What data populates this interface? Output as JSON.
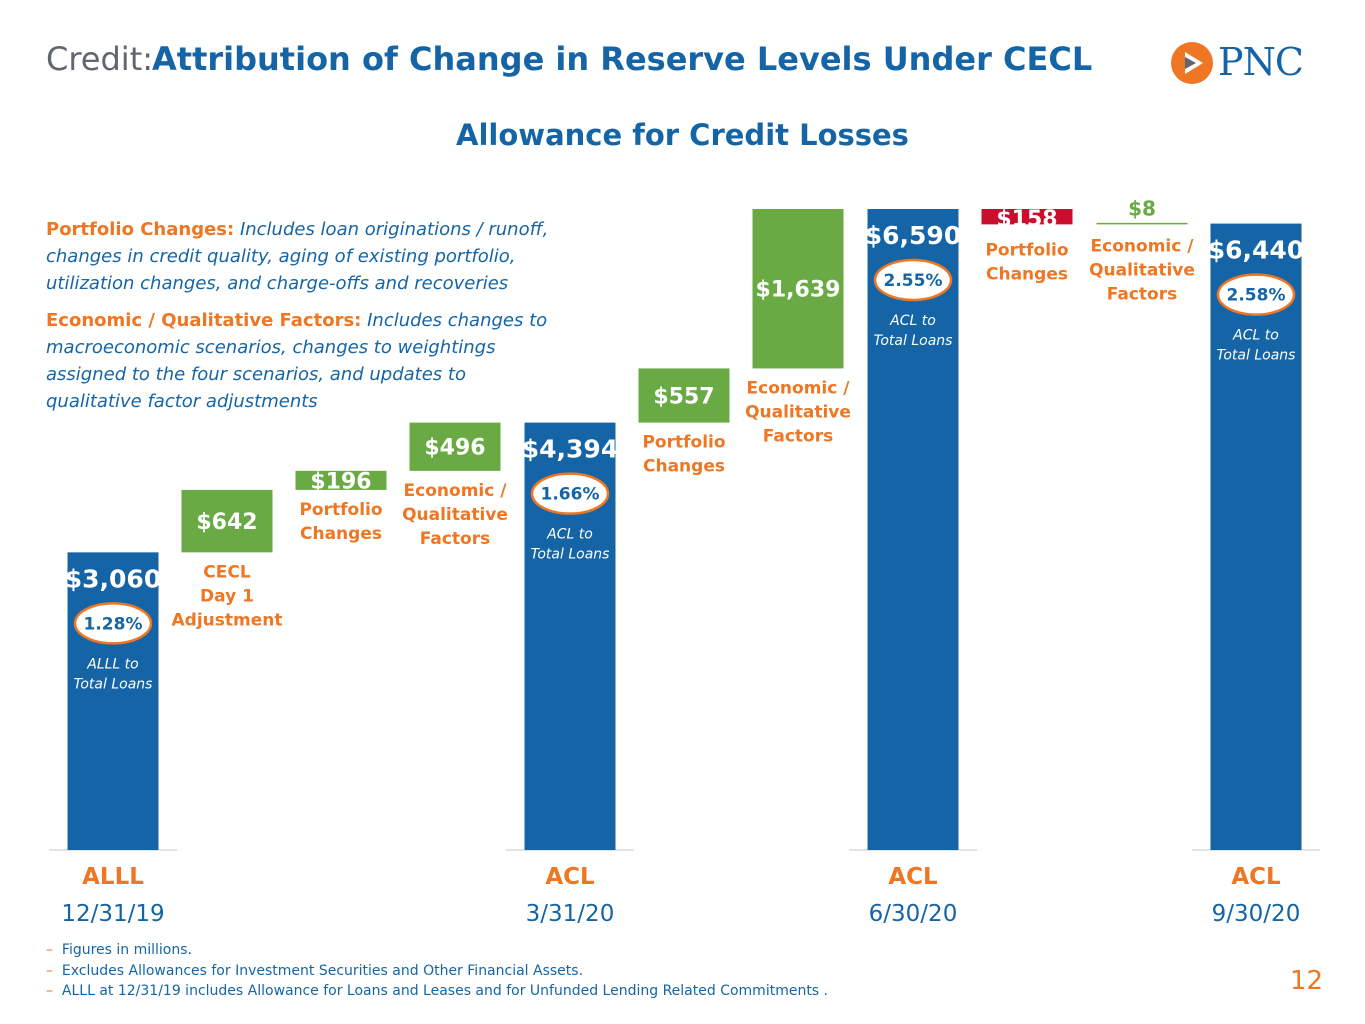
{
  "header": {
    "prefix": "Credit:",
    "title": "Attribution of Change in Reserve Levels Under CECL"
  },
  "logo": {
    "text": "PNC",
    "icon": "pnc-triangle-icon"
  },
  "colors": {
    "blue": "#1565a6",
    "green": "#6aaa45",
    "red": "#c8102e",
    "orange": "#ef7622",
    "gray": "#5f6670"
  },
  "definitions": [
    {
      "term": "Portfolio Changes:",
      "text": "Includes loan originations / runoff, changes in credit quality, aging of existing portfolio, utilization changes, and charge-offs and recoveries"
    },
    {
      "term": "Economic / Qualitative Factors:",
      "text": "Includes changes to macroeconomic scenarios, changes to weightings assigned to the four scenarios, and updates to qualitative factor adjustments"
    }
  ],
  "chart_data": {
    "type": "bar",
    "subtype": "waterfall",
    "title": "Allowance for Credit Losses",
    "unit": "$ millions",
    "steps": [
      {
        "kind": "total",
        "value": 3060,
        "label": "$3,060",
        "ratio": "1.28%",
        "ratio_caption": [
          "ALLL to",
          "Total Loans"
        ],
        "axis_code": "ALLL",
        "axis_date": "12/31/19"
      },
      {
        "kind": "increase",
        "value": 642,
        "label": "$642",
        "caption": [
          "CECL",
          "Day 1",
          "Adjustment"
        ]
      },
      {
        "kind": "increase",
        "value": 196,
        "label": "$196",
        "caption": [
          "Portfolio",
          "Changes"
        ]
      },
      {
        "kind": "increase",
        "value": 496,
        "label": "$496",
        "caption": [
          "Economic /",
          "Qualitative",
          "Factors"
        ]
      },
      {
        "kind": "total",
        "value": 4394,
        "label": "$4,394",
        "ratio": "1.66%",
        "ratio_caption": [
          "ACL to",
          "Total Loans"
        ],
        "axis_code": "ACL",
        "axis_date": "3/31/20"
      },
      {
        "kind": "increase",
        "value": 557,
        "label": "$557",
        "caption": [
          "Portfolio",
          "Changes"
        ]
      },
      {
        "kind": "increase",
        "value": 1639,
        "label": "$1,639",
        "caption": [
          "Economic /",
          "Qualitative",
          "Factors"
        ]
      },
      {
        "kind": "total",
        "value": 6590,
        "label": "$6,590",
        "ratio": "2.55%",
        "ratio_caption": [
          "ACL to",
          "Total Loans"
        ],
        "axis_code": "ACL",
        "axis_date": "6/30/20"
      },
      {
        "kind": "decrease",
        "value": -158,
        "label": "$158",
        "caption": [
          "Portfolio",
          "Changes"
        ]
      },
      {
        "kind": "increase",
        "value": 8,
        "label": "$8",
        "caption": [
          "Economic /",
          "Qualitative",
          "Factors"
        ]
      },
      {
        "kind": "total",
        "value": 6440,
        "label": "$6,440",
        "ratio": "2.58%",
        "ratio_caption": [
          "ACL to",
          "Total Loans"
        ],
        "axis_code": "ACL",
        "axis_date": "9/30/20"
      }
    ]
  },
  "footnotes": [
    "Figures in millions.",
    "Excludes Allowances for Investment Securities and Other Financial Assets.",
    "ALLL at 12/31/19 includes Allowance for Loans and Leases and for Unfunded Lending Related Commitments ."
  ],
  "page_number": "12"
}
